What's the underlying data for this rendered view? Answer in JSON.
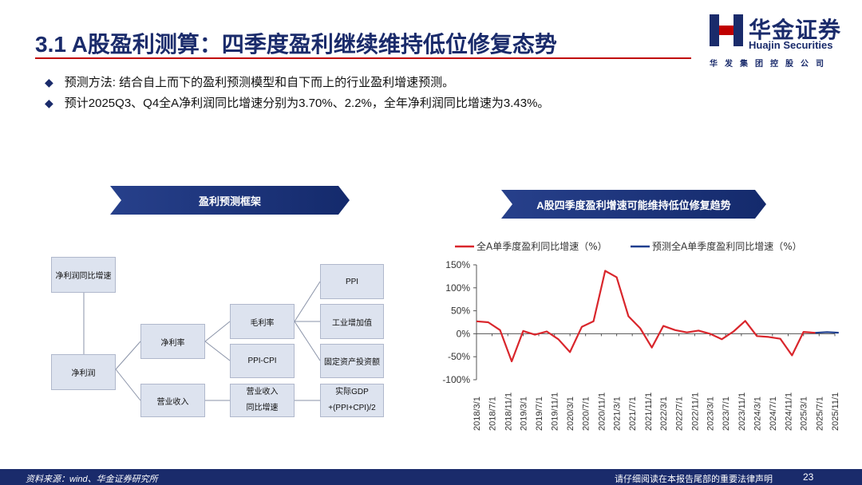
{
  "header": {
    "title": "3.1 A股盈利测算：四季度盈利继续维持低位修复态势",
    "logo_cn": "华金证券",
    "logo_en": "Huajin Securities",
    "logo_sub": "华发集团控股公司"
  },
  "bullets": [
    "预测方法: 结合自上而下的盈利预测模型和自下而上的行业盈利增速预测。",
    "预计2025Q3、Q4全A净利润同比增速分别为3.70%、2.2%，全年净利润同比增速为3.43%。"
  ],
  "left_panel": {
    "banner": "盈利预测框架",
    "boxes": {
      "net_profit_growth": "净利润同比增速",
      "net_profit": "净利润",
      "net_margin": "净利率",
      "revenue": "营业收入",
      "gross_margin": "毛利率",
      "ppi_cpi": "PPI-CPI",
      "revenue_growth_1": "营业收入",
      "revenue_growth_2": "同比增速",
      "ppi": "PPI",
      "industrial_va": "工业增加值",
      "fai": "固定资产投资额",
      "gdp_1": "实际GDP",
      "gdp_2": "+(PPI+CPI)/2"
    }
  },
  "right_panel": {
    "banner": "A股四季度盈利增速可能维持低位修复趋势"
  },
  "chart_data": {
    "type": "line",
    "legend": [
      "全A单季度盈利同比增速（%）",
      "预测全A单季度盈利同比增速（%）"
    ],
    "legend_position": "top",
    "ylim": [
      -100,
      150
    ],
    "yticks": [
      "150%",
      "100%",
      "50%",
      "0%",
      "-50%",
      "-100%"
    ],
    "xtick_labels": [
      "2018/3/1",
      "2018/7/1",
      "2018/11/1",
      "2019/3/1",
      "2019/7/1",
      "2019/11/1",
      "2020/3/1",
      "2020/7/1",
      "2020/11/1",
      "2021/3/1",
      "2021/7/1",
      "2021/11/1",
      "2022/3/1",
      "2022/7/1",
      "2022/11/1",
      "2023/3/1",
      "2023/7/1",
      "2023/11/1",
      "2024/3/1",
      "2024/7/1",
      "2024/11/1",
      "2025/3/1",
      "2025/7/1",
      "2025/11/1"
    ],
    "x": [
      "2018/3/1",
      "2018/6/1",
      "2018/9/1",
      "2018/12/1",
      "2019/3/1",
      "2019/6/1",
      "2019/9/1",
      "2019/12/1",
      "2020/3/1",
      "2020/6/1",
      "2020/9/1",
      "2020/12/1",
      "2021/3/1",
      "2021/6/1",
      "2021/9/1",
      "2021/12/1",
      "2022/3/1",
      "2022/6/1",
      "2022/9/1",
      "2022/12/1",
      "2023/3/1",
      "2023/6/1",
      "2023/9/1",
      "2023/12/1",
      "2024/3/1",
      "2024/6/1",
      "2024/9/1",
      "2024/12/1",
      "2025/3/1",
      "2025/6/1"
    ],
    "series": [
      {
        "name": "全A单季度盈利同比增速（%）",
        "color": "#d9262c",
        "values": [
          27,
          25,
          8,
          -60,
          6,
          -2,
          5,
          -12,
          -40,
          15,
          27,
          137,
          123,
          38,
          12,
          -30,
          17,
          8,
          3,
          7,
          0,
          -12,
          5,
          28,
          -5,
          -7,
          -11,
          -47,
          4,
          2
        ]
      },
      {
        "name": "预测全A单季度盈利同比增速（%）",
        "color": "#1f3f8f",
        "x": [
          "2025/6/1",
          "2025/9/1",
          "2025/12/1"
        ],
        "values": [
          2,
          3.7,
          2.2
        ]
      }
    ]
  },
  "footer": {
    "source": "资料来源：wind、华金证券研究所",
    "disclaimer": "请仔细阅读在本报告尾部的重要法律声明",
    "page": "23"
  },
  "colors": {
    "brand_navy": "#1a2b6b",
    "accent_red": "#c00000",
    "box_fill": "#dde3ef"
  }
}
